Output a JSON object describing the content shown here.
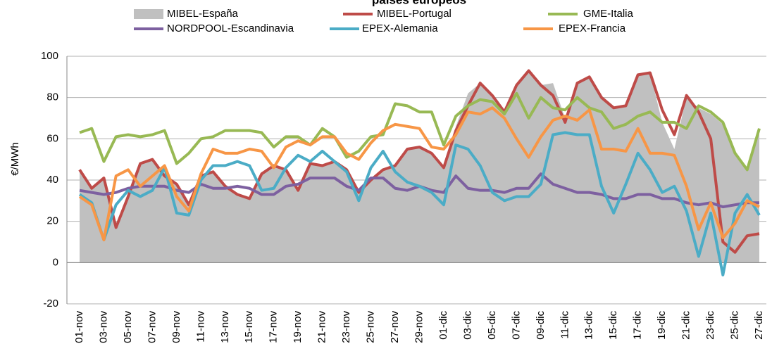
{
  "chart_data": {
    "type": "line",
    "title": "países europeos",
    "y_label": "€/MWh",
    "categories": [
      "01-nov",
      null,
      "03-nov",
      null,
      "05-nov",
      null,
      "07-nov",
      null,
      "09-nov",
      null,
      "11-nov",
      null,
      "13-nov",
      null,
      "15-nov",
      null,
      "17-nov",
      null,
      "19-nov",
      null,
      "21-nov",
      null,
      "23-nov",
      null,
      "25-nov",
      null,
      "27-nov",
      null,
      "29-nov",
      null,
      "01-dic",
      null,
      "03-dic",
      null,
      "05-dic",
      null,
      "07-dic",
      null,
      "09-dic",
      null,
      "11-dic",
      null,
      "13-dic",
      null,
      "15-dic",
      null,
      "17-dic",
      null,
      "19-dic",
      null,
      "21-dic",
      null,
      "23-dic",
      null,
      "25-dic",
      null,
      "27-dic"
    ],
    "ylim": [
      -20,
      100
    ],
    "yticks": [
      -20,
      0,
      20,
      40,
      60,
      80,
      100
    ],
    "grid": true,
    "series": [
      {
        "name": "MIBEL-España",
        "type": "area",
        "color": "#c0c0c0",
        "values": [
          45,
          36,
          41,
          17,
          32,
          48,
          50,
          42,
          38,
          28,
          42,
          44,
          37,
          33,
          31,
          43,
          47,
          45,
          35,
          48,
          47,
          49,
          45,
          34,
          40,
          45,
          47,
          55,
          56,
          53,
          46,
          66,
          82,
          87,
          81,
          73,
          86,
          93,
          86,
          87,
          70,
          87,
          90,
          80,
          75,
          76,
          91,
          92,
          68,
          55,
          80,
          75,
          72,
          67,
          52,
          45,
          63
        ]
      },
      {
        "name": "MIBEL-Portugal",
        "color": "#be4b48",
        "values": [
          45,
          36,
          41,
          17,
          32,
          48,
          50,
          42,
          38,
          28,
          42,
          44,
          37,
          33,
          31,
          43,
          47,
          45,
          35,
          48,
          47,
          49,
          45,
          34,
          40,
          45,
          47,
          55,
          56,
          53,
          46,
          64,
          76,
          87,
          81,
          73,
          86,
          93,
          86,
          81,
          68,
          87,
          90,
          80,
          75,
          76,
          91,
          92,
          74,
          62,
          81,
          73,
          60,
          10,
          5,
          13,
          14
        ]
      },
      {
        "name": "GME-Italia",
        "color": "#98b954",
        "values": [
          63,
          65,
          49,
          61,
          62,
          61,
          62,
          64,
          48,
          53,
          60,
          61,
          64,
          64,
          64,
          63,
          56,
          61,
          61,
          57,
          65,
          61,
          51,
          54,
          61,
          62,
          77,
          76,
          73,
          73,
          57,
          71,
          76,
          79,
          78,
          72,
          82,
          70,
          80,
          75,
          74,
          80,
          75,
          73,
          65,
          67,
          71,
          73,
          68,
          68,
          65,
          76,
          73,
          68,
          53,
          45,
          65
        ]
      },
      {
        "name": "NORDPOOL-Escandinavia",
        "color": "#7d60a0",
        "values": [
          35,
          34,
          33,
          34,
          36,
          37,
          37,
          37,
          35,
          34,
          38,
          36,
          36,
          37,
          36,
          33,
          33,
          37,
          38,
          41,
          41,
          41,
          37,
          35,
          41,
          41,
          36,
          35,
          37,
          35,
          34,
          42,
          36,
          35,
          35,
          34,
          36,
          36,
          43,
          38,
          36,
          34,
          34,
          33,
          31,
          31,
          33,
          33,
          31,
          31,
          29,
          28,
          29,
          27,
          28,
          29,
          29
        ]
      },
      {
        "name": "EPEX-Alemania",
        "color": "#4bacc6",
        "values": [
          33,
          29,
          11,
          28,
          35,
          32,
          35,
          46,
          24,
          23,
          40,
          47,
          47,
          49,
          47,
          35,
          36,
          46,
          52,
          49,
          54,
          49,
          44,
          30,
          46,
          54,
          44,
          39,
          37,
          34,
          28,
          57,
          55,
          47,
          34,
          30,
          32,
          32,
          38,
          62,
          63,
          62,
          62,
          37,
          24,
          38,
          53,
          45,
          34,
          37,
          25,
          3,
          24,
          -6,
          24,
          33,
          23
        ]
      },
      {
        "name": "EPEX-Francia",
        "color": "#f79646",
        "values": [
          32,
          28,
          11,
          42,
          45,
          37,
          42,
          47,
          32,
          25,
          43,
          55,
          53,
          53,
          55,
          54,
          46,
          56,
          59,
          57,
          61,
          61,
          53,
          50,
          58,
          64,
          67,
          66,
          65,
          56,
          55,
          62,
          73,
          72,
          75,
          70,
          60,
          51,
          61,
          69,
          71,
          69,
          74,
          55,
          55,
          54,
          65,
          53,
          53,
          52,
          37,
          16,
          29,
          12,
          19,
          30,
          27
        ]
      }
    ]
  }
}
